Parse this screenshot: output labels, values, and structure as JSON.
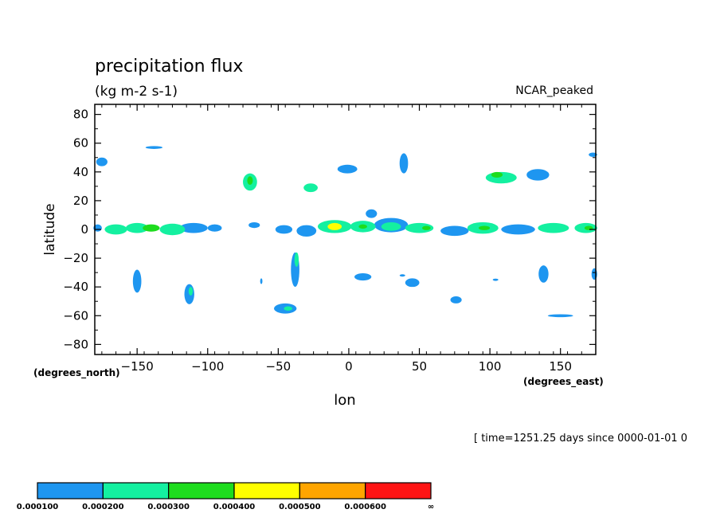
{
  "chart_data": {
    "type": "heatmap",
    "title": "precipitation flux",
    "units": "(kg m-2 s-1)",
    "model": "NCAR_peaked",
    "xlabel": "lon",
    "ylabel": "latitude",
    "x_units": "(degrees_east)",
    "y_units": "(degrees_north)",
    "xlim": [
      -180,
      175
    ],
    "ylim": [
      -87,
      87
    ],
    "xticks": [
      -150,
      -100,
      -50,
      0,
      50,
      100,
      150
    ],
    "yticks": [
      80,
      60,
      40,
      20,
      0,
      -20,
      -40,
      -60,
      -80
    ],
    "time_label": "[ time=1251.25 days since 0000-01-01 0",
    "levels": [
      "0.000100",
      "0.000200",
      "0.000300",
      "0.000400",
      "0.000500",
      "0.000600",
      "∞"
    ],
    "level_colors": [
      "#1e96f0",
      "#14f0a0",
      "#1edc1e",
      "#ffff00",
      "#ffa500",
      "#ff1414"
    ],
    "grid": false,
    "features": [
      {
        "lon": -175,
        "lat": 47,
        "dlon": 4,
        "dlat": 3,
        "level": 0
      },
      {
        "lon": -138,
        "lat": 57,
        "dlon": 6,
        "dlat": 1,
        "level": 0
      },
      {
        "lon": -70,
        "lat": 33,
        "dlon": 5,
        "dlat": 6,
        "level": 1
      },
      {
        "lon": -70,
        "lat": 34,
        "dlon": 2,
        "dlat": 3,
        "level": 2
      },
      {
        "lon": -27,
        "lat": 29,
        "dlon": 5,
        "dlat": 3,
        "level": 1
      },
      {
        "lon": -1,
        "lat": 42,
        "dlon": 7,
        "dlat": 3,
        "level": 0
      },
      {
        "lon": 39,
        "lat": 46,
        "dlon": 3,
        "dlat": 7,
        "level": 0
      },
      {
        "lon": 108,
        "lat": 36,
        "dlon": 11,
        "dlat": 4,
        "level": 1
      },
      {
        "lon": 105,
        "lat": 38,
        "dlon": 4,
        "dlat": 2,
        "level": 2
      },
      {
        "lon": 134,
        "lat": 38,
        "dlon": 8,
        "dlat": 4,
        "level": 0
      },
      {
        "lon": 173,
        "lat": 52,
        "dlon": 3,
        "dlat": 1.5,
        "level": 0
      },
      {
        "lon": 16,
        "lat": 11,
        "dlon": 4,
        "dlat": 3,
        "level": 0
      },
      {
        "lon": -38,
        "lat": -28,
        "dlon": 3,
        "dlat": 12,
        "level": 0
      },
      {
        "lon": -37,
        "lat": -21,
        "dlon": 1.5,
        "dlat": 5,
        "level": 1
      },
      {
        "lon": -150,
        "lat": -36,
        "dlon": 3,
        "dlat": 8,
        "level": 0
      },
      {
        "lon": -113,
        "lat": -45,
        "dlon": 3.5,
        "dlat": 7,
        "level": 0
      },
      {
        "lon": -112,
        "lat": -43,
        "dlon": 1.5,
        "dlat": 3,
        "level": 1
      },
      {
        "lon": -45,
        "lat": -55,
        "dlon": 8,
        "dlat": 3.5,
        "level": 0
      },
      {
        "lon": -43,
        "lat": -55,
        "dlon": 3,
        "dlat": 1.5,
        "level": 1
      },
      {
        "lon": 10,
        "lat": -33,
        "dlon": 6,
        "dlat": 2.5,
        "level": 0
      },
      {
        "lon": 45,
        "lat": -37,
        "dlon": 5,
        "dlat": 3,
        "level": 0
      },
      {
        "lon": 76,
        "lat": -49,
        "dlon": 4,
        "dlat": 2.5,
        "level": 0
      },
      {
        "lon": 138,
        "lat": -31,
        "dlon": 3.5,
        "dlat": 6,
        "level": 0
      },
      {
        "lon": 150,
        "lat": -60,
        "dlon": 9,
        "dlat": 1,
        "level": 0
      },
      {
        "lon": 174,
        "lat": -31,
        "dlon": 2,
        "dlat": 4,
        "level": 0
      },
      {
        "lon": -62,
        "lat": -36,
        "dlon": 0.8,
        "dlat": 2,
        "level": 0
      },
      {
        "lon": 104,
        "lat": -35,
        "dlon": 2,
        "dlat": 0.8,
        "level": 0
      },
      {
        "lon": 38,
        "lat": -32,
        "dlon": 2,
        "dlat": 0.8,
        "level": 0
      }
    ],
    "itcz_segments": [
      {
        "lon": -178,
        "dlon": 3,
        "lat": 1,
        "dlat": 2.5,
        "level": 0
      },
      {
        "lon": -165,
        "dlon": 8,
        "lat": 0,
        "dlat": 3.5,
        "level": 1
      },
      {
        "lon": -150,
        "dlon": 8,
        "lat": 1,
        "dlat": 3.5,
        "level": 1
      },
      {
        "lon": -140,
        "dlon": 6,
        "lat": 1,
        "dlat": 2.5,
        "level": 2
      },
      {
        "lon": -125,
        "dlon": 9,
        "lat": 0,
        "dlat": 4,
        "level": 1
      },
      {
        "lon": -110,
        "dlon": 10,
        "lat": 1,
        "dlat": 3.5,
        "level": 0
      },
      {
        "lon": -95,
        "dlon": 5,
        "lat": 1,
        "dlat": 2.5,
        "level": 0
      },
      {
        "lon": -67,
        "dlon": 4,
        "lat": 3,
        "dlat": 2,
        "level": 0
      },
      {
        "lon": -46,
        "dlon": 6,
        "lat": 0,
        "dlat": 3,
        "level": 0
      },
      {
        "lon": -30,
        "dlon": 7,
        "lat": -1,
        "dlat": 4,
        "level": 0
      },
      {
        "lon": -10,
        "dlon": 12,
        "lat": 2,
        "dlat": 4.5,
        "level": 1
      },
      {
        "lon": -10,
        "dlon": 5,
        "lat": 2,
        "dlat": 2.5,
        "level": 3
      },
      {
        "lon": 10,
        "dlon": 9,
        "lat": 2,
        "dlat": 4,
        "level": 1
      },
      {
        "lon": 10,
        "dlon": 3,
        "lat": 2,
        "dlat": 1.5,
        "level": 2
      },
      {
        "lon": 30,
        "dlon": 12,
        "lat": 3,
        "dlat": 5,
        "level": 0
      },
      {
        "lon": 30,
        "dlon": 7,
        "lat": 2,
        "dlat": 3,
        "level": 1
      },
      {
        "lon": 50,
        "dlon": 10,
        "lat": 1,
        "dlat": 3.5,
        "level": 1
      },
      {
        "lon": 55,
        "dlon": 3,
        "lat": 1,
        "dlat": 1.5,
        "level": 2
      },
      {
        "lon": 75,
        "dlon": 10,
        "lat": -1,
        "dlat": 3.5,
        "level": 0
      },
      {
        "lon": 95,
        "dlon": 11,
        "lat": 1,
        "dlat": 4,
        "level": 1
      },
      {
        "lon": 96,
        "dlon": 4,
        "lat": 1,
        "dlat": 1.5,
        "level": 2
      },
      {
        "lon": 120,
        "dlon": 12,
        "lat": 0,
        "dlat": 3.5,
        "level": 0
      },
      {
        "lon": 145,
        "dlon": 11,
        "lat": 1,
        "dlat": 3.5,
        "level": 1
      },
      {
        "lon": 168,
        "dlon": 8,
        "lat": 1,
        "dlat": 3.5,
        "level": 1
      },
      {
        "lon": 170,
        "dlon": 3,
        "lat": 1,
        "dlat": 1.5,
        "level": 2
      }
    ]
  }
}
